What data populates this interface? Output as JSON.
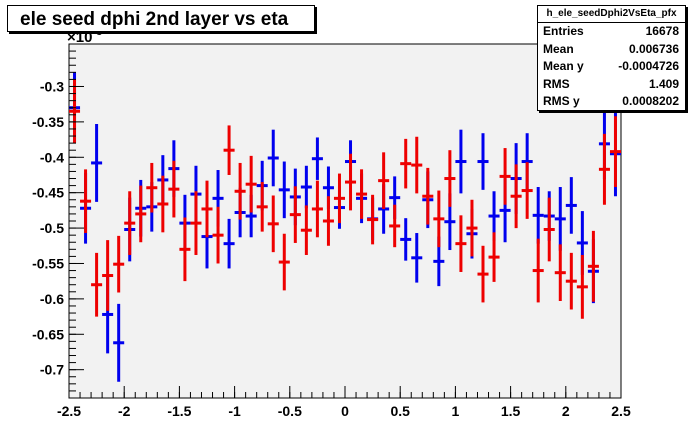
{
  "title": "ele seed dphi 2nd layer vs eta",
  "stats": {
    "name": "h_ele_seedDphi2VsEta_pfx",
    "rows": [
      {
        "label": "Entries",
        "value": "16678"
      },
      {
        "label": "Mean",
        "value": "0.006736"
      },
      {
        "label": "Mean y",
        "value": "-0.0004726"
      },
      {
        "label": "RMS",
        "value": "1.409"
      },
      {
        "label": "RMS y",
        "value": "0.0008202"
      }
    ]
  },
  "chart_data": {
    "type": "scatter",
    "title": "ele seed dphi 2nd layer vs eta",
    "xlabel": "",
    "ylabel": "",
    "y_multiplier_label": "×10",
    "y_multiplier_exp": "-3",
    "xlim": [
      -2.5,
      2.5
    ],
    "ylim": [
      -0.74,
      -0.24
    ],
    "x_ticks": [
      -2.5,
      -2,
      -1.5,
      -1,
      -0.5,
      0,
      0.5,
      1,
      1.5,
      2,
      2.5
    ],
    "x_tick_labels": [
      "-2.5",
      "-2",
      "-1.5",
      "-1",
      "-0.5",
      "0",
      "0.5",
      "1",
      "1.5",
      "2",
      "2.5"
    ],
    "y_ticks": [
      -0.7,
      -0.65,
      -0.6,
      -0.55,
      -0.5,
      -0.45,
      -0.4,
      -0.35,
      -0.3
    ],
    "y_tick_labels": [
      "-0.7",
      "-0.65",
      "-0.6",
      "-0.55",
      "-0.5",
      "-0.45",
      "-0.4",
      "-0.35",
      "-0.3"
    ],
    "grid": false,
    "series": [
      {
        "color": "#0000ee",
        "x": [
          -2.45,
          -2.35,
          -2.25,
          -2.15,
          -2.05,
          -1.95,
          -1.85,
          -1.75,
          -1.65,
          -1.55,
          -1.45,
          -1.35,
          -1.25,
          -1.15,
          -1.05,
          -0.95,
          -0.85,
          -0.75,
          -0.65,
          -0.55,
          -0.45,
          -0.35,
          -0.25,
          -0.15,
          -0.05,
          0.05,
          0.15,
          0.25,
          0.35,
          0.45,
          0.55,
          0.65,
          0.75,
          0.85,
          0.95,
          1.05,
          1.15,
          1.25,
          1.35,
          1.45,
          1.55,
          1.65,
          1.75,
          1.85,
          1.95,
          2.05,
          2.15,
          2.25,
          2.35,
          2.45
        ],
        "y": [
          -0.33,
          -0.472,
          -0.408,
          -0.622,
          -0.662,
          -0.502,
          -0.472,
          -0.47,
          -0.432,
          -0.416,
          -0.493,
          -0.452,
          -0.512,
          -0.458,
          -0.522,
          -0.478,
          -0.483,
          -0.44,
          -0.401,
          -0.446,
          -0.456,
          -0.442,
          -0.402,
          -0.443,
          -0.471,
          -0.406,
          -0.458,
          -0.487,
          -0.473,
          -0.457,
          -0.516,
          -0.542,
          -0.46,
          -0.547,
          -0.491,
          -0.406,
          -0.508,
          -0.406,
          -0.483,
          -0.475,
          -0.43,
          -0.406,
          -0.482,
          -0.483,
          -0.487,
          -0.468,
          -0.521,
          -0.561,
          -0.381,
          -0.395
        ],
        "err": [
          0.05,
          0.05,
          0.055,
          0.055,
          0.055,
          0.045,
          0.04,
          0.035,
          0.035,
          0.04,
          0.04,
          0.04,
          0.045,
          0.04,
          0.035,
          0.035,
          0.03,
          0.035,
          0.04,
          0.04,
          0.04,
          0.03,
          0.03,
          0.03,
          0.03,
          0.03,
          0.035,
          0.03,
          0.035,
          0.03,
          0.03,
          0.035,
          0.04,
          0.035,
          0.04,
          0.045,
          0.035,
          0.04,
          0.035,
          0.045,
          0.05,
          0.04,
          0.04,
          0.035,
          0.045,
          0.04,
          0.045,
          0.045,
          0.05,
          0.06
        ]
      },
      {
        "color": "#ee0000",
        "x": [
          -2.45,
          -2.35,
          -2.25,
          -2.15,
          -2.05,
          -1.95,
          -1.85,
          -1.75,
          -1.65,
          -1.55,
          -1.45,
          -1.35,
          -1.25,
          -1.15,
          -1.05,
          -0.95,
          -0.85,
          -0.75,
          -0.65,
          -0.55,
          -0.45,
          -0.35,
          -0.25,
          -0.15,
          -0.05,
          0.05,
          0.15,
          0.25,
          0.35,
          0.45,
          0.55,
          0.65,
          0.75,
          0.85,
          0.95,
          1.05,
          1.15,
          1.25,
          1.35,
          1.45,
          1.55,
          1.65,
          1.75,
          1.85,
          1.95,
          2.05,
          2.15,
          2.25,
          2.35,
          2.45
        ],
        "y": [
          -0.335,
          -0.462,
          -0.58,
          -0.567,
          -0.551,
          -0.493,
          -0.48,
          -0.443,
          -0.466,
          -0.445,
          -0.53,
          -0.493,
          -0.473,
          -0.51,
          -0.39,
          -0.448,
          -0.438,
          -0.47,
          -0.494,
          -0.548,
          -0.481,
          -0.503,
          -0.473,
          -0.49,
          -0.458,
          -0.435,
          -0.452,
          -0.488,
          -0.433,
          -0.497,
          -0.409,
          -0.411,
          -0.455,
          -0.487,
          -0.43,
          -0.522,
          -0.5,
          -0.565,
          -0.541,
          -0.427,
          -0.455,
          -0.447,
          -0.56,
          -0.502,
          -0.563,
          -0.575,
          -0.583,
          -0.554,
          -0.417,
          -0.392
        ],
        "err": [
          0.045,
          0.045,
          0.045,
          0.05,
          0.04,
          0.045,
          0.04,
          0.035,
          0.04,
          0.04,
          0.045,
          0.045,
          0.04,
          0.04,
          0.035,
          0.04,
          0.04,
          0.035,
          0.04,
          0.04,
          0.04,
          0.035,
          0.04,
          0.035,
          0.035,
          0.04,
          0.035,
          0.035,
          0.04,
          0.03,
          0.035,
          0.04,
          0.04,
          0.04,
          0.04,
          0.04,
          0.04,
          0.04,
          0.035,
          0.04,
          0.045,
          0.04,
          0.045,
          0.045,
          0.04,
          0.04,
          0.045,
          0.05,
          0.05,
          0.05
        ]
      }
    ]
  }
}
